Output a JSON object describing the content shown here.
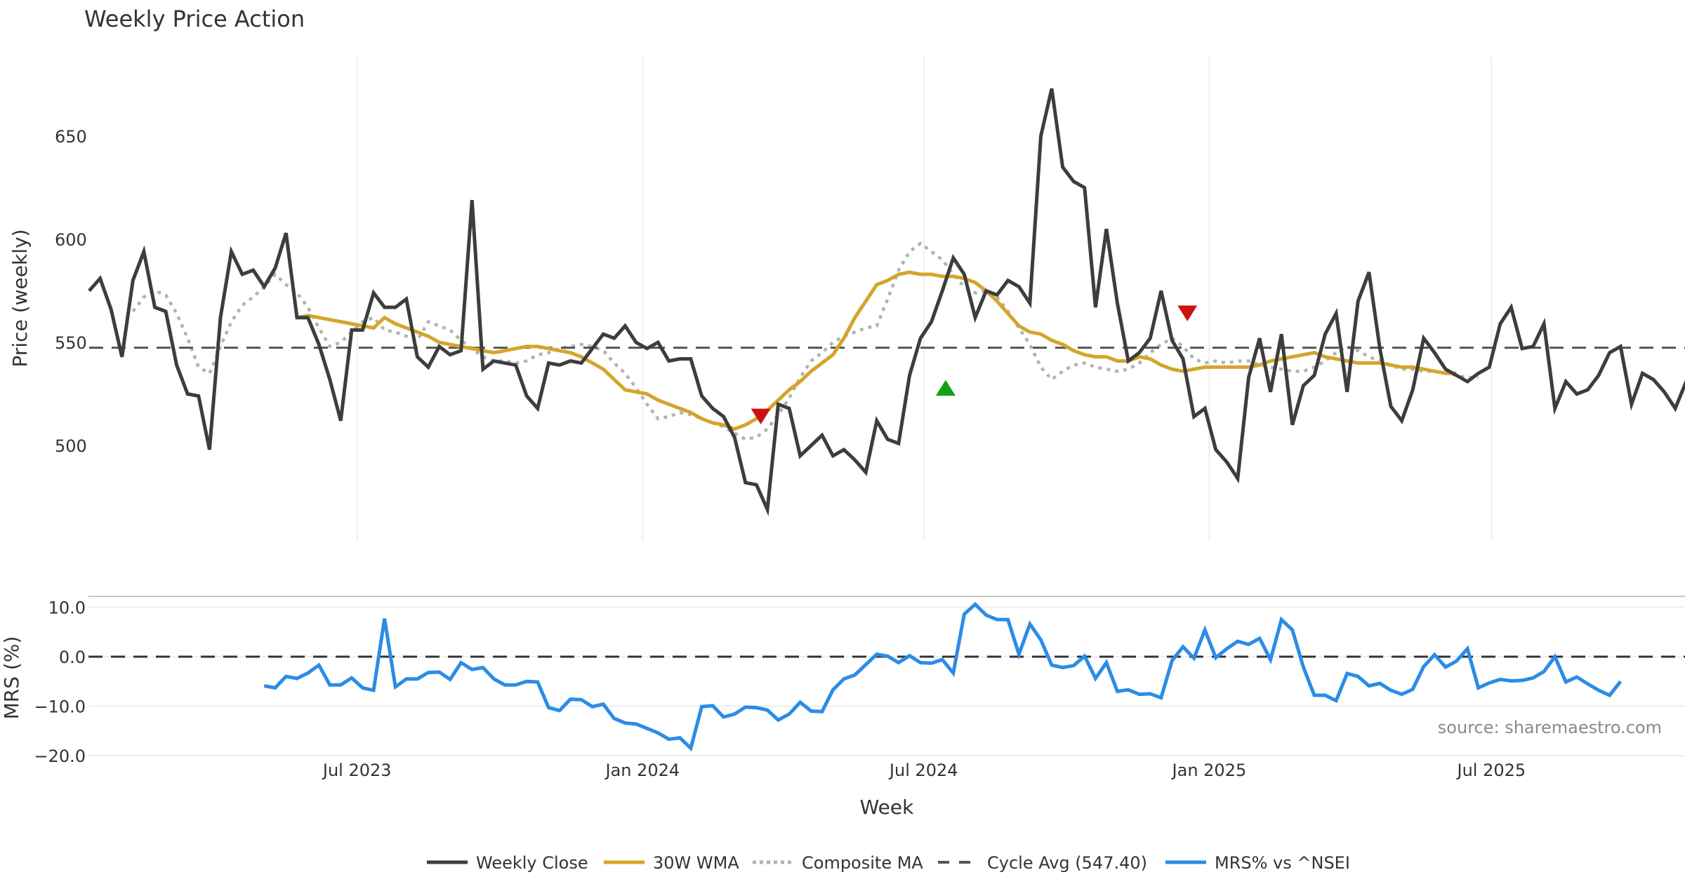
{
  "chart_data": [
    {
      "type": "line",
      "panel": "price",
      "title": "Weekly Price Action",
      "xlabel": "Week",
      "ylabel": "Price (weekly)",
      "ylim": [
        455,
        690
      ],
      "yticks": [
        500,
        550,
        600,
        650
      ],
      "x_start": "2023-03-13",
      "x_ticks": [
        {
          "label": "Jul 2023",
          "week": 24.5
        },
        {
          "label": "Jan 2024",
          "week": 50.6
        },
        {
          "label": "Jul 2024",
          "week": 76.3
        },
        {
          "label": "Jan 2025",
          "week": 102.4
        },
        {
          "label": "Jul 2025",
          "week": 128.2
        }
      ],
      "grid": "vertical",
      "series": [
        {
          "name": "Weekly Close",
          "color": "#3d3d3d",
          "style": "solid",
          "start_week": 0,
          "values": [
            575,
            581,
            566,
            543,
            580,
            594,
            567,
            565,
            539,
            525,
            524,
            498,
            562,
            594,
            583,
            585,
            577,
            586,
            603,
            562,
            562,
            549,
            532,
            512,
            556,
            556,
            574,
            567,
            567,
            571,
            543,
            538,
            548,
            544,
            546,
            619,
            537,
            541,
            540,
            539,
            524,
            518,
            540,
            539,
            541,
            540,
            547,
            554,
            552,
            558,
            550,
            547,
            550,
            541,
            542,
            542,
            524,
            518,
            514,
            504,
            482,
            481,
            469,
            520,
            518,
            495,
            500,
            505,
            495,
            498,
            493,
            487,
            512,
            503,
            501,
            534,
            552,
            560,
            575,
            591,
            583,
            562,
            575,
            573,
            580,
            577,
            569,
            650,
            673,
            635,
            628,
            625,
            567,
            605,
            569,
            541,
            545,
            552,
            575,
            551,
            542,
            514,
            518,
            498,
            492,
            484,
            533,
            552,
            526,
            554,
            510,
            529,
            534,
            554,
            564,
            526,
            570,
            584,
            547,
            519,
            512,
            527,
            552,
            545,
            537,
            534,
            531,
            535,
            538,
            559,
            567,
            547,
            548,
            559,
            518,
            531,
            525,
            527,
            534,
            545,
            548,
            520,
            535,
            532,
            526,
            518,
            531
          ]
        },
        {
          "name": "30W WMA",
          "color": "#d4a52b",
          "style": "solid",
          "start_week": 19,
          "values": [
            562,
            563,
            562,
            561,
            560,
            559,
            558,
            557,
            562,
            559,
            557,
            555,
            553,
            550,
            549,
            548,
            547,
            546,
            545,
            546,
            547,
            548,
            548,
            547,
            546,
            545,
            543,
            540,
            537,
            532,
            527,
            526,
            525,
            522,
            520,
            518,
            516,
            513,
            511,
            510,
            508,
            510,
            513,
            517,
            522,
            527,
            531,
            536,
            540,
            544,
            552,
            562,
            570,
            578,
            580,
            583,
            584,
            583,
            583,
            582,
            582,
            581,
            579,
            575,
            570,
            564,
            558,
            555,
            554,
            551,
            549,
            546,
            544,
            543,
            543,
            541,
            541,
            543,
            542,
            539,
            537,
            536,
            537,
            538,
            538,
            538,
            538,
            538,
            539,
            541,
            542,
            543,
            544,
            545,
            543,
            542,
            541,
            540,
            540,
            540,
            539,
            538,
            538,
            537,
            536,
            535,
            535
          ]
        },
        {
          "name": "Composite MA",
          "color": "#b3b3b3",
          "style": "dotted",
          "start_week": 4,
          "values": [
            565,
            572,
            575,
            573,
            564,
            552,
            538,
            535,
            548,
            560,
            568,
            572,
            577,
            583,
            578,
            574,
            567,
            557,
            548,
            550,
            555,
            560,
            562,
            556,
            555,
            553,
            551,
            560,
            558,
            556,
            551,
            547,
            543,
            541,
            541,
            540,
            541,
            544,
            545,
            547,
            548,
            549,
            548,
            546,
            540,
            535,
            528,
            520,
            513,
            514,
            516,
            515,
            513,
            511,
            509,
            506,
            503,
            504,
            508,
            515,
            523,
            533,
            541,
            545,
            550,
            553,
            555,
            557,
            558,
            571,
            585,
            594,
            598,
            594,
            590,
            583,
            577,
            574,
            575,
            572,
            565,
            557,
            549,
            538,
            532,
            536,
            539,
            540,
            538,
            537,
            536,
            537,
            540,
            545,
            549,
            552,
            548,
            542,
            540,
            541,
            540,
            541,
            541,
            539,
            538,
            537,
            536,
            536,
            538,
            541,
            545,
            548,
            546,
            543,
            541,
            539,
            537,
            537,
            536,
            536,
            535,
            534,
            533,
            533
          ]
        },
        {
          "name": "Cycle Avg (547.40)",
          "color": "#555555",
          "style": "dashed",
          "constant": 547.4
        }
      ],
      "markers": [
        {
          "type": "sell",
          "shape": "triangle-down",
          "color": "#cc1111",
          "week": 61.4,
          "value": 515
        },
        {
          "type": "buy",
          "shape": "triangle-up",
          "color": "#13a013",
          "week": 78.3,
          "value": 527
        },
        {
          "type": "sell",
          "shape": "triangle-down",
          "color": "#cc1111",
          "week": 100.4,
          "value": 565
        }
      ]
    },
    {
      "type": "line",
      "panel": "mrs",
      "xlabel": "Week",
      "ylabel": "MRS (%)",
      "ylim": [
        -20,
        12
      ],
      "yticks": [
        10.0,
        0.0,
        -10.0,
        -20.0
      ],
      "ytick_labels": [
        "10.0",
        "0.0",
        "−10.0",
        "−20.0"
      ],
      "series": [
        {
          "name": "MRS% vs ^NSEI",
          "color": "#2b8ce6",
          "style": "solid",
          "start_week": 16,
          "values": [
            -5.9,
            -6.3,
            -4.0,
            -4.4,
            -3.3,
            -1.7,
            -5.7,
            -5.7,
            -4.3,
            -6.3,
            -6.8,
            7.7,
            -6.1,
            -4.5,
            -4.5,
            -3.2,
            -3.1,
            -4.6,
            -1.2,
            -2.6,
            -2.2,
            -4.5,
            -5.7,
            -5.7,
            -5.0,
            -5.1,
            -10.3,
            -10.9,
            -8.6,
            -8.7,
            -10.1,
            -9.6,
            -12.5,
            -13.4,
            -13.6,
            -14.5,
            -15.4,
            -16.7,
            -16.4,
            -18.5,
            -10.1,
            -9.9,
            -12.2,
            -11.6,
            -10.2,
            -10.3,
            -10.8,
            -12.8,
            -11.6,
            -9.2,
            -11.0,
            -11.1,
            -6.7,
            -4.5,
            -3.7,
            -1.6,
            0.5,
            0.1,
            -1.2,
            0.2,
            -1.2,
            -1.3,
            -0.6,
            -3.3,
            8.6,
            10.6,
            8.4,
            7.5,
            7.5,
            0.5,
            6.6,
            3.4,
            -1.7,
            -2.2,
            -1.8,
            0.1,
            -4.4,
            -1.2,
            -7.0,
            -6.7,
            -7.6,
            -7.5,
            -8.3,
            -0.8,
            2.0,
            -0.3,
            5.4,
            -0.2,
            1.6,
            3.1,
            2.5,
            3.7,
            -0.6,
            7.5,
            5.4,
            -2.1,
            -7.8,
            -7.8,
            -8.9,
            -3.4,
            -4.0,
            -5.9,
            -5.4,
            -6.8,
            -7.6,
            -6.6,
            -2.0,
            0.4,
            -2.1,
            -0.9,
            1.6,
            -6.3,
            -5.3,
            -4.6,
            -4.9,
            -4.8,
            -4.3,
            -3.0,
            0.0,
            -5.1,
            -4.1,
            -5.5,
            -6.8,
            -7.8,
            -5.0
          ]
        },
        {
          "name": "Zero line",
          "color": "#333333",
          "style": "dashed",
          "constant": 0
        }
      ]
    }
  ],
  "legend": {
    "placement": "bottom-center",
    "items": [
      {
        "label": "Weekly Close",
        "color": "#3d3d3d",
        "style": "solid"
      },
      {
        "label": "30W WMA",
        "color": "#d4a52b",
        "style": "solid"
      },
      {
        "label": "Composite MA",
        "color": "#b3b3b3",
        "style": "dotted"
      },
      {
        "label": "Cycle Avg (547.40)",
        "color": "#555555",
        "style": "dashed"
      },
      {
        "label": "MRS% vs ^NSEI",
        "color": "#2b8ce6",
        "style": "solid"
      }
    ]
  },
  "source": "source: sharemaestro.com"
}
